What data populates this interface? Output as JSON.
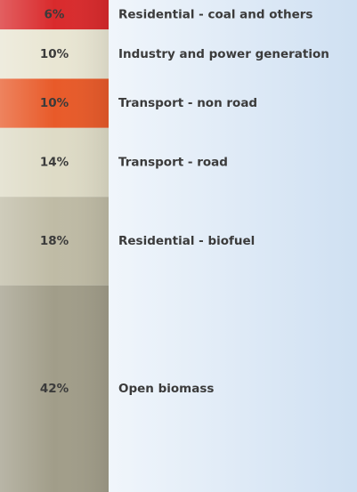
{
  "chart_data": {
    "type": "stacked-column",
    "categories": [
      "Residential - coal and others",
      "Industry and power generation",
      "Transport - non road",
      "Transport - road",
      "Residential - biofuel",
      "Open biomass"
    ],
    "values": [
      6,
      10,
      10,
      14,
      18,
      42
    ],
    "value_labels": [
      "6%",
      "10%",
      "10%",
      "14%",
      "18%",
      "42%"
    ],
    "colors": [
      "#d92a2c",
      "#e9e6d3",
      "#e85a29",
      "#dedbc6",
      "#bfbba5",
      "#a19d89"
    ],
    "ylim": [
      0,
      100
    ]
  }
}
